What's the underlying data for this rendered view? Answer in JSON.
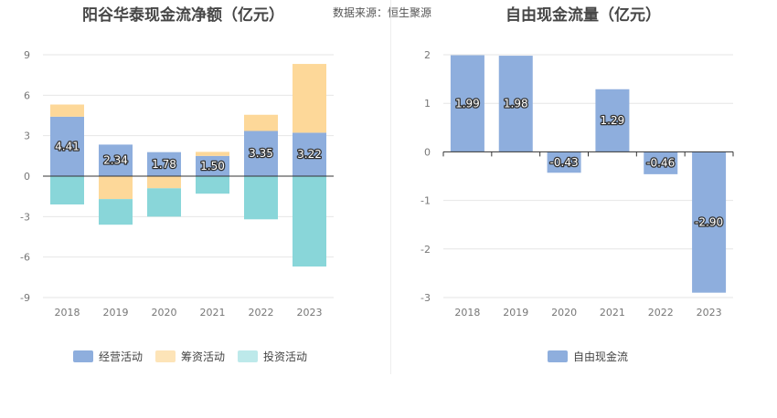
{
  "source_text": "数据来源：恒生聚源",
  "colors": {
    "operating": "#8eaedd",
    "financing": "#fdd899",
    "investing": "#89d6d9",
    "free": "#8eaedd",
    "grid": "#e6e6e6",
    "axis": "#333333",
    "tick": "#777777"
  },
  "chart_data": [
    {
      "type": "bar",
      "stacked": true,
      "title": "阳谷华泰现金流净额（亿元）",
      "categories": [
        "2018",
        "2019",
        "2020",
        "2021",
        "2022",
        "2023"
      ],
      "ylim": [
        -9,
        9
      ],
      "yticks": [
        9,
        6,
        3,
        0,
        -3,
        -6,
        -9
      ],
      "grid": true,
      "legend_position": "bottom",
      "series": [
        {
          "name": "经营活动",
          "values": [
            4.41,
            2.34,
            1.78,
            1.5,
            3.35,
            3.22
          ],
          "labels": [
            "4.41",
            "2.34",
            "1.78",
            "1.50",
            "3.35",
            "3.22"
          ]
        },
        {
          "name": "筹资活动",
          "values": [
            0.9,
            -1.7,
            -0.9,
            0.3,
            1.2,
            5.1
          ]
        },
        {
          "name": "投资活动",
          "values": [
            -2.1,
            -1.9,
            -2.1,
            -1.3,
            -3.2,
            -6.7
          ]
        }
      ]
    },
    {
      "type": "bar",
      "title": "自由现金流量（亿元）",
      "categories": [
        "2018",
        "2019",
        "2020",
        "2021",
        "2022",
        "2023"
      ],
      "ylim": [
        -3,
        2
      ],
      "yticks": [
        2,
        1,
        0,
        -1,
        -2,
        -3
      ],
      "grid": true,
      "legend_position": "bottom",
      "series": [
        {
          "name": "自由现金流",
          "values": [
            1.99,
            1.98,
            -0.43,
            1.29,
            -0.46,
            -2.9
          ],
          "labels": [
            "1.99",
            "1.98",
            "-0.43",
            "1.29",
            "-0.46",
            "-2.90"
          ]
        }
      ]
    }
  ]
}
